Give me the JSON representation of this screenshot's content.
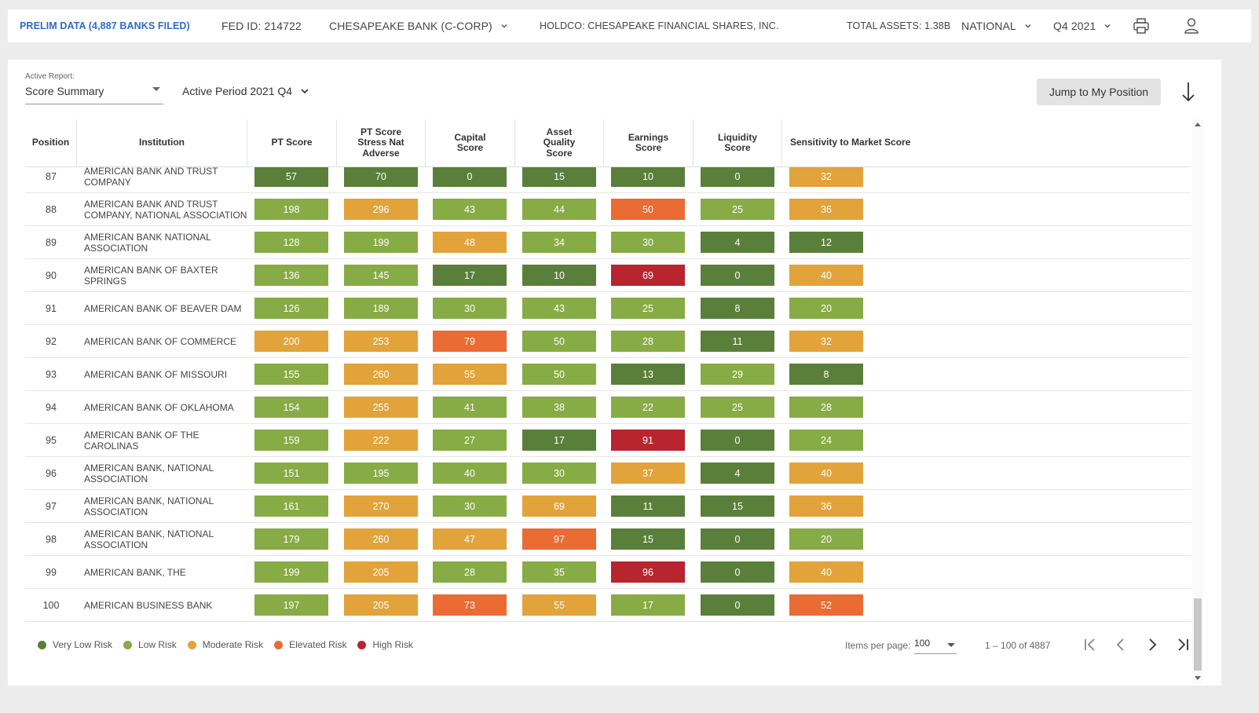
{
  "header": {
    "prelim": "PRELIM DATA (4,887 BANKS FILED)",
    "fed_id": "FED ID: 214722",
    "bank": "CHESAPEAKE BANK (C-CORP)",
    "holdco": "HOLDCO: CHESAPEAKE FINANCIAL SHARES, INC.",
    "total_assets": "TOTAL ASSETS: 1.38B",
    "scope": "NATIONAL",
    "period": "Q4 2021",
    "print_icon": "printer-icon",
    "user_icon": "user-icon"
  },
  "controls": {
    "active_report_label": "Active Report:",
    "active_report_value": "Score Summary",
    "active_period": "Active Period 2021 Q4",
    "jump_button": "Jump to My Position",
    "download_icon": "arrow-down-icon"
  },
  "table": {
    "columns": [
      "Position",
      "Institution",
      "PT Score",
      "PT Score Stress Nat Adverse",
      "Capital Score",
      "Asset Quality Score",
      "Earnings Score",
      "Liquidity Score",
      "Sensitivity to Market Score"
    ],
    "rows": [
      {
        "pos": "87",
        "inst": "AMERICAN BANK AND TRUST COMPANY",
        "scores": [
          [
            "57",
            "vlow"
          ],
          [
            "70",
            "vlow"
          ],
          [
            "0",
            "vlow"
          ],
          [
            "15",
            "vlow"
          ],
          [
            "10",
            "vlow"
          ],
          [
            "0",
            "vlow"
          ],
          [
            "32",
            "mod"
          ]
        ]
      },
      {
        "pos": "88",
        "inst": "AMERICAN BANK AND TRUST COMPANY, NATIONAL ASSOCIATION",
        "scores": [
          [
            "198",
            "low"
          ],
          [
            "296",
            "mod"
          ],
          [
            "43",
            "low"
          ],
          [
            "44",
            "low"
          ],
          [
            "50",
            "elev"
          ],
          [
            "25",
            "low"
          ],
          [
            "36",
            "mod"
          ]
        ]
      },
      {
        "pos": "89",
        "inst": "AMERICAN BANK NATIONAL ASSOCIATION",
        "scores": [
          [
            "128",
            "low"
          ],
          [
            "199",
            "low"
          ],
          [
            "48",
            "mod"
          ],
          [
            "34",
            "low"
          ],
          [
            "30",
            "low"
          ],
          [
            "4",
            "vlow"
          ],
          [
            "12",
            "vlow"
          ]
        ]
      },
      {
        "pos": "90",
        "inst": "AMERICAN BANK OF BAXTER SPRINGS",
        "scores": [
          [
            "136",
            "low"
          ],
          [
            "145",
            "low"
          ],
          [
            "17",
            "vlow"
          ],
          [
            "10",
            "vlow"
          ],
          [
            "69",
            "high"
          ],
          [
            "0",
            "vlow"
          ],
          [
            "40",
            "mod"
          ]
        ]
      },
      {
        "pos": "91",
        "inst": "AMERICAN BANK OF BEAVER DAM",
        "scores": [
          [
            "126",
            "low"
          ],
          [
            "189",
            "low"
          ],
          [
            "30",
            "low"
          ],
          [
            "43",
            "low"
          ],
          [
            "25",
            "low"
          ],
          [
            "8",
            "vlow"
          ],
          [
            "20",
            "low"
          ]
        ]
      },
      {
        "pos": "92",
        "inst": "AMERICAN BANK OF COMMERCE",
        "scores": [
          [
            "200",
            "mod"
          ],
          [
            "253",
            "mod"
          ],
          [
            "79",
            "elev"
          ],
          [
            "50",
            "low"
          ],
          [
            "28",
            "low"
          ],
          [
            "11",
            "vlow"
          ],
          [
            "32",
            "mod"
          ]
        ]
      },
      {
        "pos": "93",
        "inst": "AMERICAN BANK OF MISSOURI",
        "scores": [
          [
            "155",
            "low"
          ],
          [
            "260",
            "mod"
          ],
          [
            "55",
            "mod"
          ],
          [
            "50",
            "low"
          ],
          [
            "13",
            "vlow"
          ],
          [
            "29",
            "low"
          ],
          [
            "8",
            "vlow"
          ]
        ]
      },
      {
        "pos": "94",
        "inst": "AMERICAN BANK OF OKLAHOMA",
        "scores": [
          [
            "154",
            "low"
          ],
          [
            "255",
            "mod"
          ],
          [
            "41",
            "low"
          ],
          [
            "38",
            "low"
          ],
          [
            "22",
            "low"
          ],
          [
            "25",
            "low"
          ],
          [
            "28",
            "low"
          ]
        ]
      },
      {
        "pos": "95",
        "inst": "AMERICAN BANK OF THE CAROLINAS",
        "scores": [
          [
            "159",
            "low"
          ],
          [
            "222",
            "mod"
          ],
          [
            "27",
            "low"
          ],
          [
            "17",
            "vlow"
          ],
          [
            "91",
            "high"
          ],
          [
            "0",
            "vlow"
          ],
          [
            "24",
            "low"
          ]
        ]
      },
      {
        "pos": "96",
        "inst": "AMERICAN BANK, NATIONAL ASSOCIATION",
        "scores": [
          [
            "151",
            "low"
          ],
          [
            "195",
            "low"
          ],
          [
            "40",
            "low"
          ],
          [
            "30",
            "low"
          ],
          [
            "37",
            "mod"
          ],
          [
            "4",
            "vlow"
          ],
          [
            "40",
            "mod"
          ]
        ]
      },
      {
        "pos": "97",
        "inst": "AMERICAN BANK, NATIONAL ASSOCIATION",
        "scores": [
          [
            "161",
            "low"
          ],
          [
            "270",
            "mod"
          ],
          [
            "30",
            "low"
          ],
          [
            "69",
            "mod"
          ],
          [
            "11",
            "vlow"
          ],
          [
            "15",
            "vlow"
          ],
          [
            "36",
            "mod"
          ]
        ]
      },
      {
        "pos": "98",
        "inst": "AMERICAN BANK, NATIONAL ASSOCIATION",
        "scores": [
          [
            "179",
            "low"
          ],
          [
            "260",
            "mod"
          ],
          [
            "47",
            "mod"
          ],
          [
            "97",
            "elev"
          ],
          [
            "15",
            "vlow"
          ],
          [
            "0",
            "vlow"
          ],
          [
            "20",
            "low"
          ]
        ]
      },
      {
        "pos": "99",
        "inst": "AMERICAN BANK, THE",
        "scores": [
          [
            "199",
            "low"
          ],
          [
            "205",
            "mod"
          ],
          [
            "28",
            "low"
          ],
          [
            "35",
            "low"
          ],
          [
            "96",
            "high"
          ],
          [
            "0",
            "vlow"
          ],
          [
            "40",
            "mod"
          ]
        ]
      },
      {
        "pos": "100",
        "inst": "AMERICAN BUSINESS BANK",
        "scores": [
          [
            "197",
            "low"
          ],
          [
            "205",
            "mod"
          ],
          [
            "73",
            "elev"
          ],
          [
            "55",
            "mod"
          ],
          [
            "17",
            "low"
          ],
          [
            "0",
            "vlow"
          ],
          [
            "52",
            "elev"
          ]
        ]
      }
    ]
  },
  "legend": [
    {
      "label": "Very Low Risk",
      "color": "#5a7f3b"
    },
    {
      "label": "Low Risk",
      "color": "#87ab45"
    },
    {
      "label": "Moderate Risk",
      "color": "#e1a33a"
    },
    {
      "label": "Elevated Risk",
      "color": "#ea6b33"
    },
    {
      "label": "High Risk",
      "color": "#b8252e"
    }
  ],
  "pagination": {
    "items_per_page_label": "Items per page:",
    "items_per_page": "100",
    "range": "1 – 100 of 4887"
  }
}
